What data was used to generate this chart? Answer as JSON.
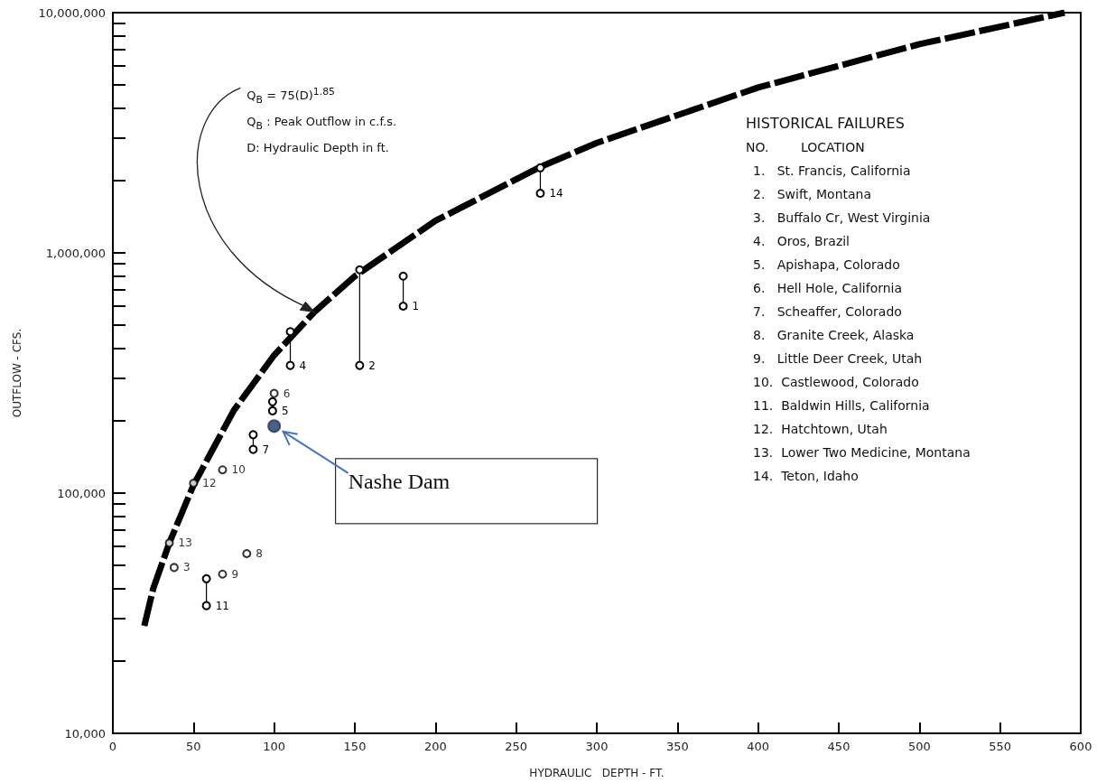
{
  "chart_data": {
    "type": "scatter",
    "xlabel": "HYDRAULIC   DEPTH - FT.",
    "ylabel": "OUTFLOW - CFS.",
    "xlim": [
      0,
      600
    ],
    "xticks": [
      0,
      50,
      100,
      150,
      200,
      250,
      300,
      350,
      400,
      450,
      500,
      550,
      600
    ],
    "ylim": [
      10000,
      10000000
    ],
    "yticks": [
      {
        "value": 10000,
        "label": "10,000"
      },
      {
        "value": 20000,
        "label": null
      },
      {
        "value": 30000,
        "label": null
      },
      {
        "value": 40000,
        "label": null
      },
      {
        "value": 50000,
        "label": null
      },
      {
        "value": 60000,
        "label": null
      },
      {
        "value": 70000,
        "label": null
      },
      {
        "value": 80000,
        "label": null
      },
      {
        "value": 90000,
        "label": null
      },
      {
        "value": 100000,
        "label": "100,000"
      },
      {
        "value": 200000,
        "label": null
      },
      {
        "value": 300000,
        "label": null
      },
      {
        "value": 400000,
        "label": null
      },
      {
        "value": 500000,
        "label": null
      },
      {
        "value": 600000,
        "label": null
      },
      {
        "value": 700000,
        "label": null
      },
      {
        "value": 800000,
        "label": null
      },
      {
        "value": 900000,
        "label": null
      },
      {
        "value": 1000000,
        "label": "1,000,000"
      },
      {
        "value": 2000000,
        "label": null
      },
      {
        "value": 3000000,
        "label": null
      },
      {
        "value": 4000000,
        "label": null
      },
      {
        "value": 5000000,
        "label": null
      },
      {
        "value": 6000000,
        "label": null
      },
      {
        "value": 7000000,
        "label": null
      },
      {
        "value": 8000000,
        "label": null
      },
      {
        "value": 9000000,
        "label": null
      },
      {
        "value": 10000000,
        "label": "10,000,000"
      }
    ],
    "log": "y",
    "grid": false,
    "legend": false,
    "marker": "circle",
    "series": [
      {
        "type": "line",
        "color": "#000000",
        "marker": "none",
        "line_style": "dashed",
        "x": [
          19.5,
          25,
          35,
          50,
          75,
          100,
          125,
          150,
          200,
          265,
          300,
          400,
          500,
          590
        ],
        "values": [
          28000,
          40000,
          62000,
          108000,
          221000,
          375000,
          568000,
          800000,
          1360000,
          2280000,
          2870000,
          4880000,
          7390000,
          10000000
        ]
      },
      {
        "type": "line",
        "name": "1",
        "color": "#000000",
        "x": [
          180,
          180
        ],
        "values": [
          800000,
          600000
        ]
      },
      {
        "type": "line",
        "name": "2",
        "color": "#000000",
        "x": [
          153,
          153
        ],
        "values": [
          850000,
          340000
        ]
      },
      {
        "name": "3",
        "color": "#000000",
        "x": [
          38
        ],
        "values": [
          49000
        ]
      },
      {
        "type": "line",
        "name": "4",
        "color": "#000000",
        "x": [
          110,
          110
        ],
        "values": [
          470000,
          340000
        ]
      },
      {
        "type": "line",
        "name": "5",
        "color": "#000000",
        "x": [
          99,
          99
        ],
        "values": [
          240000,
          220000
        ]
      },
      {
        "name": "6",
        "color": "#000000",
        "x": [
          100
        ],
        "values": [
          260000
        ]
      },
      {
        "type": "line",
        "name": "7",
        "color": "#000000",
        "x": [
          87,
          87
        ],
        "values": [
          175000,
          152000
        ]
      },
      {
        "name": "8",
        "color": "#000000",
        "x": [
          83
        ],
        "values": [
          56000
        ]
      },
      {
        "name": "9",
        "color": "#000000",
        "x": [
          68
        ],
        "values": [
          46000
        ]
      },
      {
        "name": "10",
        "color": "#000000",
        "x": [
          68
        ],
        "values": [
          125000
        ]
      },
      {
        "type": "line",
        "name": "11",
        "color": "#000000",
        "x": [
          58,
          58
        ],
        "values": [
          44000,
          34000
        ]
      },
      {
        "name": "12",
        "color": "#000000",
        "x": [
          50
        ],
        "values": [
          110000
        ]
      },
      {
        "name": "13",
        "color": "#000000",
        "x": [
          35
        ],
        "values": [
          62000
        ]
      },
      {
        "type": "line",
        "name": "14",
        "color": "#000000",
        "x": [
          265,
          265
        ],
        "values": [
          2260000,
          1770000
        ]
      },
      {
        "color": "#1f3864",
        "x": [
          100
        ],
        "values": [
          190000
        ]
      }
    ],
    "annotations": [
      "Q$_{B}$ = 75(D)$^{1.85}$",
      "Q$_{B}$ : Peak Outflow in c.f.s.",
      "D: Hydraulic Depth in ft.",
      "Nashe Dam",
      "HISTORICAL FAILURES",
      "NO.        LOCATION",
      "1.   St. Francis, California",
      "2.   Swift, Montana",
      "3.   Buffalo Cr, West Virginia",
      "4.   Oros, Brazil",
      "5.   Apishapa, Colorado",
      "6.   Hell Hole, California",
      "7.   Scheaffer, Colorado",
      "8.   Granite Creek, Alaska",
      "9.   Little Deer Creek, Utah",
      "10.  Castlewood, Colorado",
      "11.  Baldwin Hills, California",
      "12.  Hatchtown, Utah",
      "13.  Lower Two Medicine, Montana",
      "14.  Teton, Idaho"
    ]
  }
}
